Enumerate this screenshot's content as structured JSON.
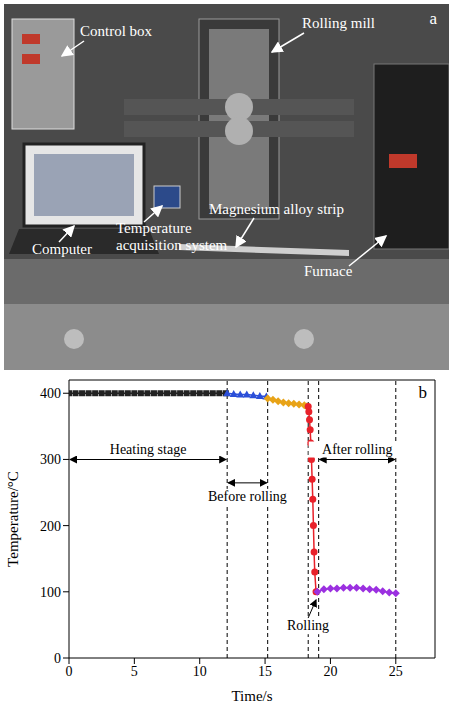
{
  "photo": {
    "panel": "a",
    "labels": [
      "Control box",
      "Rolling mill",
      "Magnesium alloy strip",
      "Temperature acquisition system",
      "Computer",
      "Furnace"
    ]
  },
  "chart_data": {
    "type": "line",
    "panel": "b",
    "x_label": "Time/s",
    "y_label": "Temperature/°C",
    "xlim": [
      0,
      28
    ],
    "xticks": [
      0,
      5,
      10,
      15,
      20,
      25
    ],
    "ylim": [
      0,
      420
    ],
    "yticks": [
      0,
      100,
      200,
      300,
      400
    ],
    "series": [
      {
        "color": "#222222",
        "marker": "square",
        "line_style": "solid",
        "x": [
          0,
          0.5,
          1,
          1.5,
          2,
          2.5,
          3,
          3.5,
          4,
          4.5,
          5,
          5.5,
          6,
          6.5,
          7,
          7.5,
          8,
          8.5,
          9,
          9.5,
          10,
          10.5,
          11,
          11.5,
          12
        ],
        "values": [
          400,
          400,
          400,
          400,
          400,
          400,
          400,
          400,
          400,
          400,
          400,
          400,
          400,
          400,
          400,
          400,
          400,
          400,
          400,
          400,
          400,
          400,
          400,
          400,
          400
        ]
      },
      {
        "color": "#2b4fd8",
        "marker": "triangle",
        "line_style": "solid",
        "x": [
          12.1,
          12.6,
          13.1,
          13.6,
          14.1,
          14.6,
          15.1
        ],
        "values": [
          400,
          399,
          398,
          398,
          397,
          396,
          395
        ]
      },
      {
        "color": "#e8a317",
        "marker": "diamond",
        "line_style": "solid",
        "x": [
          15.2,
          15.6,
          16.0,
          16.4,
          16.8,
          17.2,
          17.6,
          18.0,
          18.2
        ],
        "values": [
          392,
          390,
          388,
          386,
          385,
          384,
          383,
          382,
          380
        ]
      },
      {
        "color": "#e8212a",
        "marker": "circle",
        "line_style": "solid",
        "x": [
          18.3,
          18.35,
          18.4,
          18.45,
          18.5,
          18.55,
          18.6,
          18.65,
          18.7,
          18.75,
          18.8,
          18.9
        ],
        "values": [
          380,
          372,
          360,
          345,
          325,
          300,
          270,
          240,
          200,
          160,
          130,
          100
        ]
      },
      {
        "color": "#9b30e0",
        "marker": "diamond",
        "line_style": "solid",
        "x": [
          19.0,
          19.5,
          20,
          20.5,
          21,
          21.5,
          22,
          22.5,
          23,
          23.5,
          24,
          24.5,
          25
        ],
        "values": [
          100,
          104,
          105,
          105,
          106,
          106,
          106,
          105,
          104,
          103,
          101,
          99,
          98
        ]
      }
    ],
    "reference_lines": {
      "x": [
        12.1,
        15.2,
        18.3,
        19.1,
        25
      ]
    },
    "annotations": [
      {
        "text": "Heating stage",
        "x_range": [
          0,
          12.1
        ]
      },
      {
        "text": "Before rolling",
        "x_range": [
          12.1,
          15.2
        ]
      },
      {
        "text": "Rolling",
        "x": 18.9,
        "y": 100
      },
      {
        "text": "After rolling",
        "x_range": [
          19.1,
          25
        ]
      }
    ],
    "grid": false,
    "tick_labels": true
  }
}
